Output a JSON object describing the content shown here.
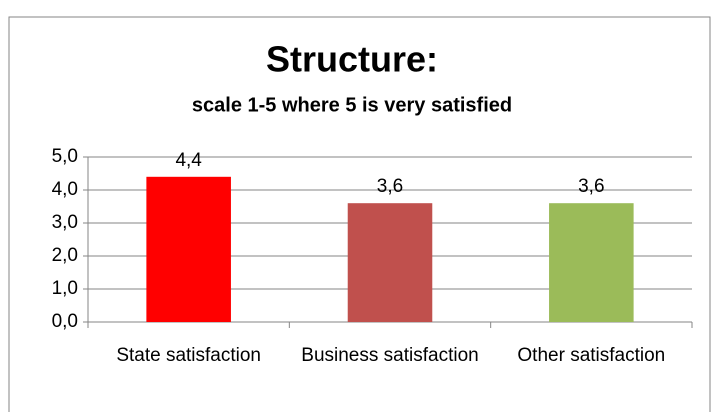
{
  "chart_data": {
    "type": "bar",
    "title": "Structure:",
    "subtitle": "scale 1-5 where 5 is very satisfied",
    "categories": [
      "State satisfaction",
      "Business satisfaction",
      "Other satisfaction"
    ],
    "values": [
      4.4,
      3.6,
      3.6
    ],
    "value_labels": [
      "4,4",
      "3,6",
      "3,6"
    ],
    "colors": [
      "#ff0000",
      "#c0504d",
      "#9bbb59"
    ],
    "ylim": [
      0,
      5
    ],
    "yticks": [
      {
        "value": 0,
        "label": "0,0"
      },
      {
        "value": 1,
        "label": "1,0"
      },
      {
        "value": 2,
        "label": "2,0"
      },
      {
        "value": 3,
        "label": "3,0"
      },
      {
        "value": 4,
        "label": "4,0"
      },
      {
        "value": 5,
        "label": "5,0"
      }
    ],
    "grid": true
  }
}
